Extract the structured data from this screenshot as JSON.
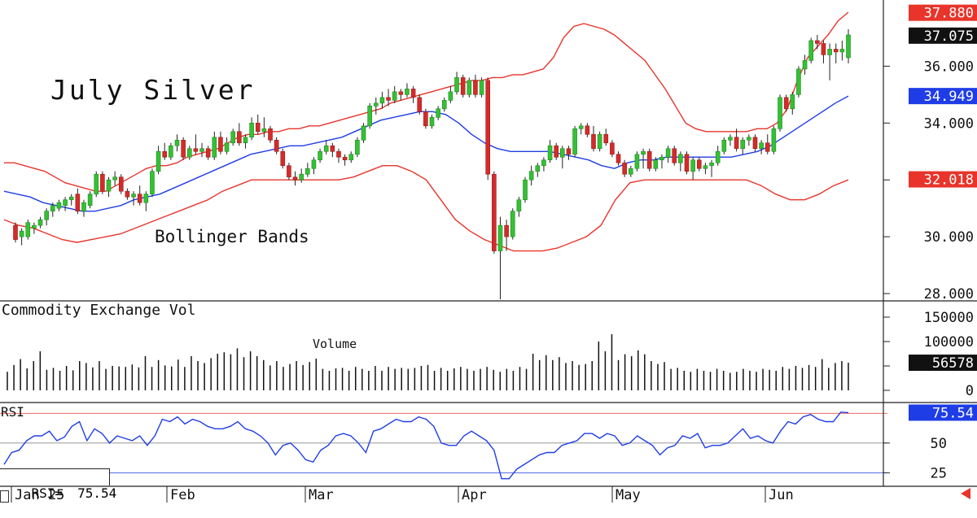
{
  "chart_data": [
    {
      "panel": "price",
      "type": "candlestick",
      "title": "July Silver",
      "overlay_label": "Bollinger Bands",
      "y_ticks": [
        "28.000",
        "30.000",
        "32.000",
        "34.000",
        "36.000"
      ],
      "ylim": [
        27.8,
        38.1
      ],
      "price_flags": [
        {
          "text": "37.880",
          "value": 37.88,
          "color": "#e8342b"
        },
        {
          "text": "37.075",
          "value": 37.075,
          "color": "#111111"
        },
        {
          "text": "34.949",
          "value": 34.949,
          "color": "#1f3de6"
        },
        {
          "text": "32.018",
          "value": 32.018,
          "color": "#e8342b"
        }
      ],
      "colors": {
        "up": "#35c035",
        "down": "#d42b2b",
        "band": "#e8342b",
        "middle": "#1f3de6"
      },
      "candles_ohlc": [
        [
          30.4,
          30.5,
          29.8,
          29.9
        ],
        [
          30.0,
          30.3,
          29.7,
          30.2
        ],
        [
          30.0,
          30.6,
          29.9,
          30.5
        ],
        [
          30.3,
          30.5,
          30.1,
          30.4
        ],
        [
          30.4,
          30.7,
          30.3,
          30.6
        ],
        [
          30.6,
          31.0,
          30.4,
          30.9
        ],
        [
          30.9,
          31.2,
          30.7,
          31.1
        ],
        [
          31.0,
          31.3,
          30.9,
          31.2
        ],
        [
          31.1,
          31.4,
          30.9,
          31.3
        ],
        [
          31.3,
          31.5,
          31.1,
          31.4
        ],
        [
          31.5,
          31.7,
          30.8,
          30.9
        ],
        [
          30.9,
          31.3,
          30.7,
          31.2
        ],
        [
          31.1,
          31.6,
          31.0,
          31.5
        ],
        [
          31.5,
          32.3,
          31.4,
          32.2
        ],
        [
          32.2,
          32.3,
          31.5,
          31.6
        ],
        [
          31.6,
          32.1,
          31.4,
          32.0
        ],
        [
          32.0,
          32.3,
          31.8,
          32.1
        ],
        [
          32.1,
          32.2,
          31.5,
          31.6
        ],
        [
          31.6,
          31.7,
          31.3,
          31.4
        ],
        [
          31.4,
          31.6,
          31.1,
          31.5
        ],
        [
          31.5,
          31.8,
          31.1,
          31.2
        ],
        [
          31.2,
          31.6,
          30.9,
          31.5
        ],
        [
          31.5,
          32.4,
          31.4,
          32.3
        ],
        [
          32.3,
          33.2,
          32.2,
          33.0
        ],
        [
          33.0,
          33.3,
          32.7,
          32.8
        ],
        [
          32.8,
          33.3,
          32.7,
          33.2
        ],
        [
          33.2,
          33.6,
          33.0,
          33.4
        ],
        [
          33.4,
          33.5,
          32.7,
          32.8
        ],
        [
          32.8,
          33.2,
          32.7,
          33.1
        ],
        [
          33.1,
          33.6,
          32.9,
          33.0
        ],
        [
          33.0,
          33.3,
          32.8,
          33.1
        ],
        [
          33.1,
          33.2,
          32.7,
          32.8
        ],
        [
          32.8,
          33.7,
          32.7,
          33.5
        ],
        [
          33.5,
          33.7,
          32.9,
          33.0
        ],
        [
          33.0,
          33.5,
          32.9,
          33.3
        ],
        [
          33.3,
          33.8,
          33.2,
          33.7
        ],
        [
          33.7,
          34.0,
          33.2,
          33.3
        ],
        [
          33.3,
          33.6,
          33.1,
          33.5
        ],
        [
          33.5,
          34.2,
          33.4,
          34.0
        ],
        [
          34.0,
          34.3,
          33.6,
          33.7
        ],
        [
          33.7,
          34.2,
          33.5,
          33.8
        ],
        [
          33.8,
          33.9,
          33.3,
          33.4
        ],
        [
          33.4,
          33.5,
          32.9,
          33.0
        ],
        [
          33.0,
          33.1,
          32.4,
          32.5
        ],
        [
          32.5,
          32.6,
          32.0,
          32.1
        ],
        [
          32.1,
          32.3,
          31.8,
          32.0
        ],
        [
          32.0,
          32.4,
          31.9,
          32.2
        ],
        [
          32.2,
          32.6,
          32.1,
          32.4
        ],
        [
          32.4,
          32.8,
          32.2,
          32.7
        ],
        [
          32.7,
          33.1,
          32.6,
          33.0
        ],
        [
          33.0,
          33.4,
          32.9,
          33.2
        ],
        [
          33.2,
          33.3,
          32.8,
          33.0
        ],
        [
          33.0,
          33.1,
          32.6,
          32.8
        ],
        [
          32.8,
          32.9,
          32.5,
          32.7
        ],
        [
          32.7,
          33.0,
          32.6,
          32.9
        ],
        [
          32.9,
          33.5,
          32.8,
          33.4
        ],
        [
          33.4,
          34.0,
          33.3,
          33.9
        ],
        [
          33.9,
          34.7,
          33.8,
          34.6
        ],
        [
          34.6,
          34.9,
          34.3,
          34.7
        ],
        [
          34.7,
          35.1,
          34.5,
          34.9
        ],
        [
          34.9,
          35.2,
          34.6,
          34.8
        ],
        [
          34.8,
          35.3,
          34.7,
          35.1
        ],
        [
          35.1,
          35.2,
          34.8,
          35.0
        ],
        [
          35.0,
          35.4,
          34.9,
          35.2
        ],
        [
          35.2,
          35.3,
          34.7,
          34.9
        ],
        [
          34.9,
          35.0,
          34.3,
          34.4
        ],
        [
          34.4,
          34.5,
          33.8,
          33.9
        ],
        [
          33.9,
          34.3,
          33.8,
          34.2
        ],
        [
          34.2,
          34.6,
          34.1,
          34.5
        ],
        [
          34.5,
          34.9,
          34.4,
          34.8
        ],
        [
          34.8,
          35.3,
          34.7,
          35.1
        ],
        [
          35.1,
          35.8,
          35.0,
          35.6
        ],
        [
          35.6,
          35.7,
          34.9,
          35.0
        ],
        [
          35.0,
          35.6,
          34.9,
          35.5
        ],
        [
          35.5,
          35.7,
          34.9,
          35.0
        ],
        [
          35.0,
          35.6,
          34.9,
          35.5
        ],
        [
          35.5,
          35.6,
          32.0,
          32.2
        ],
        [
          32.2,
          32.3,
          29.4,
          29.5
        ],
        [
          29.5,
          30.7,
          27.8,
          30.4
        ],
        [
          30.4,
          30.6,
          29.5,
          30.0
        ],
        [
          30.0,
          31.0,
          29.9,
          30.9
        ],
        [
          30.9,
          31.4,
          30.7,
          31.3
        ],
        [
          31.3,
          32.1,
          31.2,
          32.0
        ],
        [
          32.0,
          32.5,
          31.8,
          32.3
        ],
        [
          32.3,
          32.6,
          32.1,
          32.5
        ],
        [
          32.5,
          32.8,
          32.3,
          32.7
        ],
        [
          32.7,
          33.4,
          32.6,
          33.2
        ],
        [
          33.2,
          33.3,
          32.7,
          32.8
        ],
        [
          32.8,
          33.2,
          32.4,
          33.1
        ],
        [
          33.1,
          33.2,
          32.7,
          32.9
        ],
        [
          32.9,
          33.9,
          32.8,
          33.8
        ],
        [
          33.8,
          34.0,
          33.6,
          33.9
        ],
        [
          33.9,
          34.0,
          33.5,
          33.6
        ],
        [
          33.6,
          33.9,
          33.0,
          33.1
        ],
        [
          33.1,
          33.7,
          33.0,
          33.6
        ],
        [
          33.6,
          33.8,
          33.2,
          33.3
        ],
        [
          33.3,
          33.4,
          32.8,
          32.9
        ],
        [
          32.9,
          33.0,
          32.5,
          32.6
        ],
        [
          32.6,
          32.7,
          32.1,
          32.2
        ],
        [
          32.2,
          32.5,
          32.1,
          32.4
        ],
        [
          32.4,
          33.0,
          32.3,
          32.9
        ],
        [
          32.9,
          33.1,
          32.4,
          33.0
        ],
        [
          33.0,
          33.1,
          32.3,
          32.4
        ],
        [
          32.4,
          32.8,
          32.3,
          32.7
        ],
        [
          32.7,
          32.9,
          32.4,
          32.8
        ],
        [
          32.8,
          33.2,
          32.6,
          33.1
        ],
        [
          33.1,
          33.2,
          32.5,
          32.6
        ],
        [
          32.6,
          33.0,
          32.3,
          32.9
        ],
        [
          32.9,
          33.0,
          32.2,
          32.3
        ],
        [
          32.3,
          32.8,
          32.0,
          32.7
        ],
        [
          32.7,
          32.8,
          32.3,
          32.4
        ],
        [
          32.4,
          32.6,
          32.2,
          32.5
        ],
        [
          32.5,
          32.7,
          32.1,
          32.6
        ],
        [
          32.6,
          33.2,
          32.5,
          33.0
        ],
        [
          33.0,
          33.5,
          32.9,
          33.4
        ],
        [
          33.4,
          33.6,
          33.2,
          33.5
        ],
        [
          33.5,
          33.8,
          33.0,
          33.1
        ],
        [
          33.1,
          33.5,
          32.9,
          33.4
        ],
        [
          33.4,
          33.6,
          33.2,
          33.5
        ],
        [
          33.5,
          33.6,
          33.0,
          33.1
        ],
        [
          33.1,
          33.4,
          32.9,
          33.3
        ],
        [
          33.3,
          33.6,
          32.9,
          33.0
        ],
        [
          33.0,
          33.9,
          32.9,
          33.8
        ],
        [
          33.8,
          35.0,
          33.7,
          34.9
        ],
        [
          34.9,
          35.0,
          34.4,
          34.5
        ],
        [
          34.5,
          35.1,
          34.3,
          35.0
        ],
        [
          35.0,
          36.0,
          34.9,
          35.9
        ],
        [
          35.9,
          36.4,
          35.7,
          36.2
        ],
        [
          36.2,
          37.0,
          36.1,
          36.9
        ],
        [
          36.9,
          37.1,
          36.6,
          36.8
        ],
        [
          36.8,
          36.9,
          36.1,
          36.4
        ],
        [
          36.4,
          36.8,
          35.5,
          36.6
        ],
        [
          36.6,
          36.8,
          36.1,
          36.5
        ],
        [
          36.5,
          36.9,
          36.2,
          36.6
        ],
        [
          36.3,
          37.3,
          36.1,
          37.1
        ]
      ],
      "bollinger_upper": [
        32.6,
        32.6,
        32.5,
        32.4,
        32.3,
        32.1,
        31.9,
        31.8,
        31.7,
        31.6,
        31.6,
        31.8,
        32.0,
        32.2,
        32.4,
        32.5,
        32.5,
        32.6,
        32.8,
        32.9,
        33.0,
        33.1,
        33.3,
        33.5,
        33.6,
        33.6,
        33.7,
        33.7,
        33.8,
        33.8,
        33.9,
        33.9,
        34.0,
        34.1,
        34.2,
        34.3,
        34.4,
        34.5,
        34.7,
        34.8,
        34.9,
        35.0,
        35.1,
        35.2,
        35.3,
        35.4,
        35.5,
        35.5,
        35.6,
        35.6,
        35.7,
        35.7,
        35.8,
        35.9,
        36.3,
        37.0,
        37.4,
        37.5,
        37.4,
        37.3,
        37.1,
        36.8,
        36.5,
        36.2,
        35.7,
        35.2,
        34.6,
        34.0,
        33.8,
        33.7,
        33.7,
        33.7,
        33.7,
        33.7,
        33.8,
        33.8,
        34.0,
        34.5,
        35.5,
        36.3,
        36.7,
        37.1,
        37.6,
        37.9
      ],
      "bollinger_middle": [
        31.6,
        31.5,
        31.4,
        31.2,
        31.1,
        31.0,
        30.9,
        30.9,
        31.0,
        31.1,
        31.3,
        31.4,
        31.5,
        31.7,
        31.9,
        32.1,
        32.3,
        32.5,
        32.7,
        32.9,
        33.0,
        33.1,
        33.2,
        33.2,
        33.3,
        33.4,
        33.5,
        33.7,
        33.9,
        34.1,
        34.2,
        34.3,
        34.4,
        34.4,
        34.3,
        34.0,
        33.6,
        33.3,
        33.1,
        33.0,
        33.0,
        33.0,
        33.0,
        32.9,
        32.8,
        32.7,
        32.5,
        32.4,
        32.6,
        32.7,
        32.7,
        32.8,
        32.8,
        32.8,
        32.8,
        32.8,
        32.8,
        32.9,
        33.0,
        33.2,
        33.5,
        33.8,
        34.1,
        34.4,
        34.7,
        34.95
      ],
      "bollinger_lower": [
        30.6,
        30.4,
        30.3,
        30.1,
        29.9,
        29.8,
        29.9,
        30.0,
        30.1,
        30.3,
        30.5,
        30.7,
        30.9,
        31.1,
        31.3,
        31.6,
        31.8,
        32.0,
        32.0,
        32.0,
        32.0,
        32.0,
        32.0,
        32.0,
        32.1,
        32.3,
        32.5,
        32.5,
        32.3,
        32.0,
        31.3,
        30.6,
        30.2,
        29.9,
        29.7,
        29.5,
        29.5,
        29.5,
        29.6,
        29.8,
        30.0,
        30.4,
        31.3,
        31.9,
        32.0,
        32.0,
        32.0,
        32.0,
        32.0,
        32.0,
        32.0,
        32.0,
        31.8,
        31.5,
        31.3,
        31.3,
        31.5,
        31.8,
        32.0
      ],
      "months": [
        "Jan 25",
        "Feb",
        "Mar",
        "Apr",
        "May",
        "Jun"
      ]
    },
    {
      "panel": "volume",
      "type": "bar",
      "title": "Commodity Exchange Vol",
      "series_label": "Volume",
      "y_ticks": [
        "0",
        "50000",
        "100000",
        "150000"
      ],
      "ylim": [
        0,
        180000
      ],
      "last_value_text": "56578",
      "values": [
        38000,
        52000,
        64000,
        45000,
        60000,
        80000,
        42000,
        46000,
        40000,
        50000,
        41000,
        60000,
        56000,
        47000,
        60000,
        44000,
        50000,
        49000,
        48000,
        53000,
        47000,
        70000,
        48000,
        62000,
        51000,
        49000,
        63000,
        48000,
        70000,
        60000,
        56000,
        66000,
        75000,
        78000,
        74000,
        86000,
        68000,
        80000,
        70000,
        62000,
        51000,
        60000,
        48000,
        54000,
        60000,
        52000,
        58000,
        65000,
        44000,
        40000,
        45000,
        46000,
        40000,
        48000,
        44000,
        40000,
        50000,
        40000,
        48000,
        44000,
        46000,
        44000,
        46000,
        50000,
        52000,
        40000,
        46000,
        40000,
        45000,
        48000,
        44000,
        40000,
        44000,
        48000,
        42000,
        38000,
        44000,
        40000,
        48000,
        44000,
        75000,
        62000,
        72000,
        62000,
        68000,
        56000,
        60000,
        52000,
        54000,
        60000,
        100000,
        80000,
        115000,
        62000,
        74000,
        70000,
        82000,
        74000,
        60000,
        54000,
        58000,
        44000,
        46000,
        40000,
        38000,
        44000,
        40000,
        38000,
        44000,
        40000,
        36000,
        38000,
        44000,
        40000,
        38000,
        44000,
        42000,
        40000,
        48000,
        44000,
        50000,
        46000,
        52000,
        48000,
        64000,
        46000,
        56000,
        60000,
        56578
      ]
    },
    {
      "panel": "rsi",
      "type": "line",
      "title": "RSI",
      "readout_label": "RSI=",
      "readout_value": "75.54",
      "last_value_text": "75.54",
      "y_ticks": [
        "25",
        "50"
      ],
      "ylim": [
        15,
        82
      ],
      "reference_levels": [
        {
          "value": 75,
          "color": "#e8342b"
        },
        {
          "value": 50,
          "color": "#888888"
        },
        {
          "value": 25,
          "color": "#1f3de6"
        }
      ],
      "color": "#1f3de6",
      "values": [
        32,
        42,
        44,
        52,
        56,
        56,
        60,
        52,
        55,
        64,
        68,
        52,
        62,
        58,
        50,
        56,
        54,
        52,
        56,
        48,
        56,
        70,
        68,
        72,
        66,
        70,
        68,
        64,
        62,
        62,
        64,
        68,
        62,
        60,
        56,
        50,
        40,
        48,
        50,
        44,
        36,
        34,
        44,
        48,
        56,
        58,
        56,
        50,
        42,
        60,
        62,
        66,
        70,
        68,
        68,
        72,
        70,
        64,
        50,
        48,
        48,
        56,
        60,
        56,
        52,
        44,
        20,
        20,
        28,
        32,
        36,
        40,
        42,
        42,
        48,
        50,
        52,
        58,
        58,
        54,
        58,
        56,
        48,
        50,
        56,
        52,
        48,
        40,
        46,
        48,
        56,
        54,
        58,
        46,
        48,
        48,
        50,
        56,
        62,
        54,
        56,
        52,
        50,
        60,
        68,
        66,
        72,
        74,
        70,
        68,
        68,
        76,
        75.54
      ]
    }
  ]
}
